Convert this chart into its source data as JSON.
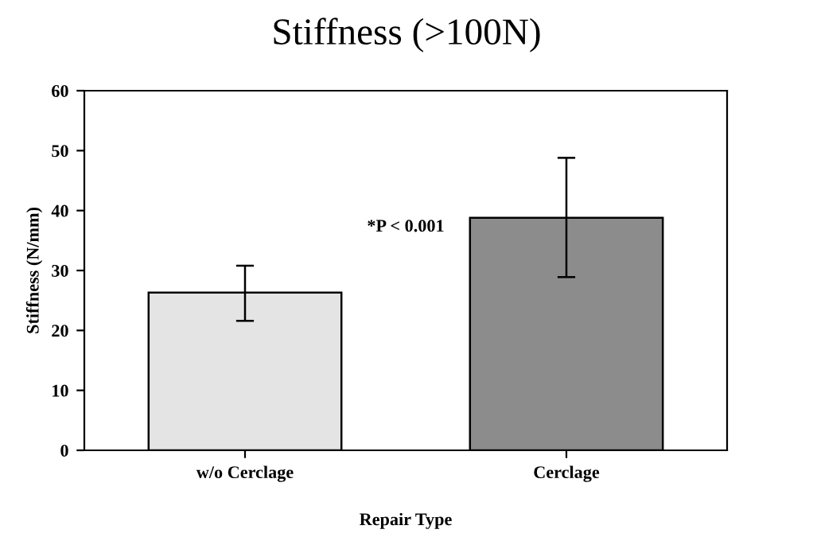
{
  "chart_data": {
    "type": "bar",
    "title": "Stiffness (>100N)",
    "xlabel": "Repair Type",
    "ylabel": "Stiffness (N/mm)",
    "categories": [
      "w/o Cerclage",
      "Cerclage"
    ],
    "values": [
      26.3,
      38.8
    ],
    "colors": [
      "#e4e4e4",
      "#8c8c8c"
    ],
    "errors": [
      [
        21.6,
        30.8
      ],
      [
        28.9,
        48.8
      ]
    ],
    "ylim": [
      0,
      60
    ],
    "yticks": [
      0,
      10,
      20,
      30,
      40,
      50,
      60
    ],
    "annotations": [
      "*P < 0.001"
    ],
    "grid": false
  }
}
